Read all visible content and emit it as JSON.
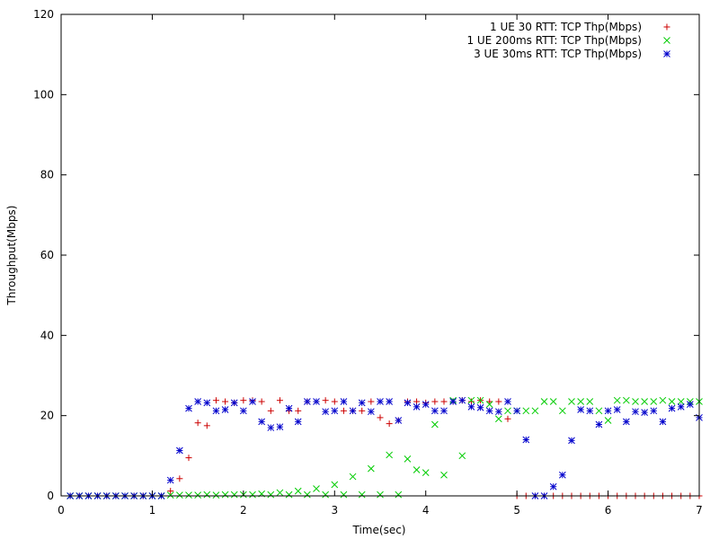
{
  "chart_data": {
    "type": "scatter",
    "title": "",
    "xlabel": "Time(sec)",
    "ylabel": "Throughput(Mbps)",
    "xlim": [
      0,
      7
    ],
    "ylim": [
      0,
      120
    ],
    "xticks": [
      0,
      1,
      2,
      3,
      4,
      5,
      6,
      7
    ],
    "yticks": [
      0,
      20,
      40,
      60,
      80,
      100,
      120
    ],
    "grid": false,
    "legend_position": "top-right",
    "series": [
      {
        "name": "1 UE 30 RTT: TCP Thp(Mbps)",
        "marker": "plus",
        "color": "#cc0000",
        "x": [
          0.1,
          0.2,
          0.3,
          0.4,
          0.5,
          0.6,
          0.7,
          0.8,
          0.9,
          1.0,
          1.1,
          1.2,
          1.3,
          1.4,
          1.5,
          1.6,
          1.7,
          1.8,
          1.9,
          2.0,
          2.1,
          2.2,
          2.3,
          2.4,
          2.5,
          2.6,
          2.7,
          2.8,
          2.9,
          3.0,
          3.1,
          3.2,
          3.3,
          3.4,
          3.5,
          3.6,
          3.7,
          3.8,
          3.9,
          4.0,
          4.1,
          4.2,
          4.3,
          4.4,
          4.5,
          4.6,
          4.7,
          4.8,
          4.9,
          5.0,
          5.1,
          5.2,
          5.3,
          5.4,
          5.5,
          5.6,
          5.7,
          5.8,
          5.9,
          6.0,
          6.1,
          6.2,
          6.3,
          6.4,
          6.5,
          6.6,
          6.7,
          6.8,
          6.9,
          7.0
        ],
        "y": [
          0,
          0,
          0,
          0,
          0,
          0,
          0,
          0,
          0,
          0,
          0,
          1.2,
          4.3,
          9.5,
          18.2,
          17.5,
          23.8,
          23.5,
          23.2,
          23.8,
          23.8,
          23.5,
          21.2,
          23.8,
          21.2,
          21.2,
          23.5,
          23.5,
          23.8,
          23.5,
          21.2,
          21.2,
          21.2,
          23.5,
          19.5,
          18.0,
          18.8,
          23.5,
          23.5,
          23.2,
          23.5,
          23.5,
          23.5,
          23.8,
          23.5,
          23.8,
          23.5,
          23.5,
          19.2,
          0,
          0,
          0,
          0,
          0,
          0,
          0,
          0,
          0,
          0,
          0,
          0,
          0,
          0,
          0,
          0,
          0,
          0,
          0,
          0,
          0
        ]
      },
      {
        "name": "1 UE 200ms RTT: TCP Thp(Mbps)",
        "marker": "cross",
        "color": "#00cc00",
        "x": [
          0.1,
          0.2,
          0.3,
          0.4,
          0.5,
          0.6,
          0.7,
          0.8,
          0.9,
          1.0,
          1.1,
          1.2,
          1.3,
          1.4,
          1.5,
          1.6,
          1.7,
          1.8,
          1.9,
          2.0,
          2.1,
          2.2,
          2.3,
          2.4,
          2.5,
          2.6,
          2.7,
          2.8,
          2.9,
          3.0,
          3.1,
          3.2,
          3.3,
          3.4,
          3.5,
          3.6,
          3.7,
          3.8,
          3.9,
          4.0,
          4.1,
          4.2,
          4.3,
          4.4,
          4.5,
          4.6,
          4.7,
          4.8,
          4.9,
          5.0,
          5.1,
          5.2,
          5.3,
          5.4,
          5.5,
          5.6,
          5.7,
          5.8,
          5.9,
          6.0,
          6.1,
          6.2,
          6.3,
          6.4,
          6.5,
          6.6,
          6.7,
          6.8,
          6.9,
          7.0
        ],
        "y": [
          0,
          0,
          0,
          0,
          0,
          0,
          0,
          0,
          0,
          0,
          0,
          0.2,
          0.2,
          0.2,
          0.2,
          0.3,
          0.2,
          0.3,
          0.3,
          0.3,
          0.3,
          0.5,
          0.3,
          0.8,
          0.3,
          1.2,
          0.3,
          1.8,
          0.3,
          2.8,
          0.3,
          4.8,
          0.3,
          6.8,
          0.3,
          10.2,
          0.3,
          9.2,
          6.5,
          5.8,
          17.8,
          5.2,
          23.8,
          10.0,
          23.8,
          23.8,
          22.8,
          19.2,
          21.2,
          21.2,
          21.2,
          21.2,
          23.5,
          23.5,
          21.2,
          23.5,
          23.5,
          23.5,
          21.2,
          18.8,
          23.8,
          23.8,
          23.5,
          23.5,
          23.5,
          23.8,
          23.5,
          23.5,
          23.5,
          23.5
        ]
      },
      {
        "name": "3 UE 30ms RTT: TCP Thp(Mbps)",
        "marker": "star",
        "color": "#0000cc",
        "x": [
          0.1,
          0.2,
          0.3,
          0.4,
          0.5,
          0.6,
          0.7,
          0.8,
          0.9,
          1.0,
          1.1,
          1.2,
          1.3,
          1.4,
          1.5,
          1.6,
          1.7,
          1.8,
          1.9,
          2.0,
          2.1,
          2.2,
          2.3,
          2.4,
          2.5,
          2.6,
          2.7,
          2.8,
          2.9,
          3.0,
          3.1,
          3.2,
          3.3,
          3.4,
          3.5,
          3.6,
          3.7,
          3.8,
          3.9,
          4.0,
          4.1,
          4.2,
          4.3,
          4.4,
          4.5,
          4.6,
          4.7,
          4.8,
          4.9,
          5.0,
          5.1,
          5.2,
          5.3,
          5.4,
          5.5,
          5.6,
          5.7,
          5.8,
          5.9,
          6.0,
          6.1,
          6.2,
          6.3,
          6.4,
          6.5,
          6.6,
          6.7,
          6.8,
          6.9,
          7.0
        ],
        "y": [
          0,
          0,
          0,
          0,
          0,
          0,
          0,
          0,
          0,
          0,
          0,
          3.9,
          11.3,
          21.8,
          23.5,
          23.2,
          21.2,
          21.5,
          23.2,
          21.2,
          23.5,
          18.5,
          17.0,
          17.2,
          21.8,
          18.5,
          23.5,
          23.5,
          21.0,
          21.2,
          23.5,
          21.2,
          23.2,
          21.0,
          23.5,
          23.5,
          18.8,
          23.2,
          22.2,
          22.8,
          21.2,
          21.2,
          23.5,
          23.8,
          22.2,
          22.0,
          21.2,
          21.0,
          23.5,
          21.2,
          14.0,
          0,
          0,
          2.3,
          5.2,
          13.8,
          21.5,
          21.2,
          17.8,
          21.2,
          21.5,
          18.5,
          21.0,
          20.8,
          21.2,
          18.5,
          21.8,
          22.2,
          22.8,
          19.5
        ]
      }
    ]
  }
}
